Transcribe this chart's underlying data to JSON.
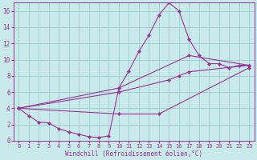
{
  "xlabel": "Windchill (Refroidissement éolien,°C)",
  "bg_color": "#c8eaea",
  "grid_color": "#a0cccc",
  "line_color": "#993399",
  "xlim": [
    -0.5,
    23.5
  ],
  "ylim": [
    0,
    17
  ],
  "xticks": [
    0,
    1,
    2,
    3,
    4,
    5,
    6,
    7,
    8,
    9,
    10,
    11,
    12,
    13,
    14,
    15,
    16,
    17,
    18,
    19,
    20,
    21,
    22,
    23
  ],
  "yticks": [
    0,
    2,
    4,
    6,
    8,
    10,
    12,
    14,
    16
  ],
  "curve1_x": [
    0,
    1,
    2,
    3,
    4,
    5,
    6,
    7,
    8,
    9,
    10,
    11,
    12,
    13,
    14,
    15,
    16,
    17,
    18,
    19,
    20,
    21,
    22,
    23
  ],
  "curve1_y": [
    4.0,
    3.1,
    2.3,
    2.2,
    1.5,
    1.1,
    0.8,
    0.5,
    0.4,
    0.6,
    6.5,
    8.6,
    11.0,
    13.0,
    15.5,
    17.0,
    16.0,
    12.5,
    10.5,
    9.5,
    9.5,
    9.0,
    9.3,
    9.3
  ],
  "curve2_x": [
    0,
    10,
    15,
    16,
    17,
    23
  ],
  "curve2_y": [
    4.0,
    6.0,
    7.5,
    8.0,
    8.5,
    9.3
  ],
  "curve3_x": [
    0,
    10,
    17,
    23
  ],
  "curve3_y": [
    4.0,
    6.5,
    10.5,
    9.3
  ],
  "curve4_x": [
    0,
    10,
    14,
    23
  ],
  "curve4_y": [
    4.0,
    3.3,
    3.3,
    9.0
  ],
  "marker_size": 2.2,
  "line_width": 0.8,
  "xlabel_fontsize": 5.5,
  "tick_fontsize": 5.0
}
